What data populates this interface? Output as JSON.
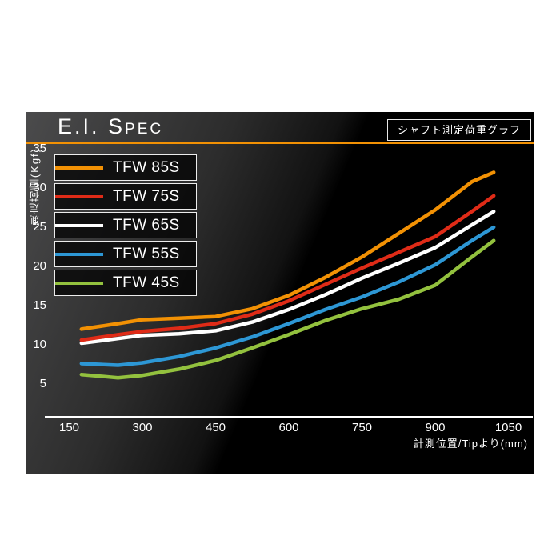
{
  "header": {
    "title": "E.I. Spec",
    "badge": "シャフト測定荷重グラフ",
    "accent_color": "#f29104"
  },
  "chart_data": {
    "type": "line",
    "title": "E.I. Spec",
    "subtitle": "シャフト測定荷重グラフ",
    "xlabel": "計測位置/Tipより(mm)",
    "ylabel": "測定荷重(Kgf)",
    "xlim": [
      100,
      1100
    ],
    "ylim": [
      0,
      35
    ],
    "xticks": [
      150,
      300,
      450,
      600,
      750,
      900,
      1050
    ],
    "yticks": [
      5,
      10,
      15,
      20,
      25,
      30,
      35
    ],
    "grid": false,
    "legend_position": "top-left",
    "x": [
      175,
      250,
      300,
      375,
      450,
      525,
      600,
      675,
      750,
      825,
      900,
      975,
      1020
    ],
    "series": [
      {
        "name": "TFW 85S",
        "color": "#f29104",
        "values": [
          12.0,
          12.7,
          13.2,
          13.4,
          13.6,
          14.6,
          16.3,
          18.6,
          21.2,
          24.2,
          27.2,
          30.8,
          32.0
        ]
      },
      {
        "name": "TFW 75S",
        "color": "#df2b17",
        "values": [
          10.6,
          11.3,
          11.7,
          12.1,
          12.7,
          13.9,
          15.6,
          17.7,
          19.8,
          21.8,
          23.8,
          27.0,
          29.0
        ]
      },
      {
        "name": "TFW 65S",
        "color": "#ffffff",
        "values": [
          10.2,
          10.8,
          11.2,
          11.4,
          11.8,
          12.9,
          14.5,
          16.4,
          18.5,
          20.4,
          22.4,
          25.3,
          27.0
        ]
      },
      {
        "name": "TFW 55S",
        "color": "#2d97d5",
        "values": [
          7.6,
          7.4,
          7.7,
          8.5,
          9.6,
          11.0,
          12.7,
          14.5,
          16.1,
          18.0,
          20.2,
          23.3,
          25.0
        ]
      },
      {
        "name": "TFW 45S",
        "color": "#93c13e",
        "values": [
          6.2,
          5.8,
          6.1,
          6.9,
          8.0,
          9.6,
          11.3,
          13.1,
          14.6,
          15.8,
          17.6,
          21.2,
          23.3
        ]
      }
    ]
  },
  "colors": {
    "page_background": "#ffffff",
    "panel_background": "#000000",
    "panel_sheen": "#4b4b4c",
    "text": "#ffffff",
    "accent": "#f29104"
  }
}
